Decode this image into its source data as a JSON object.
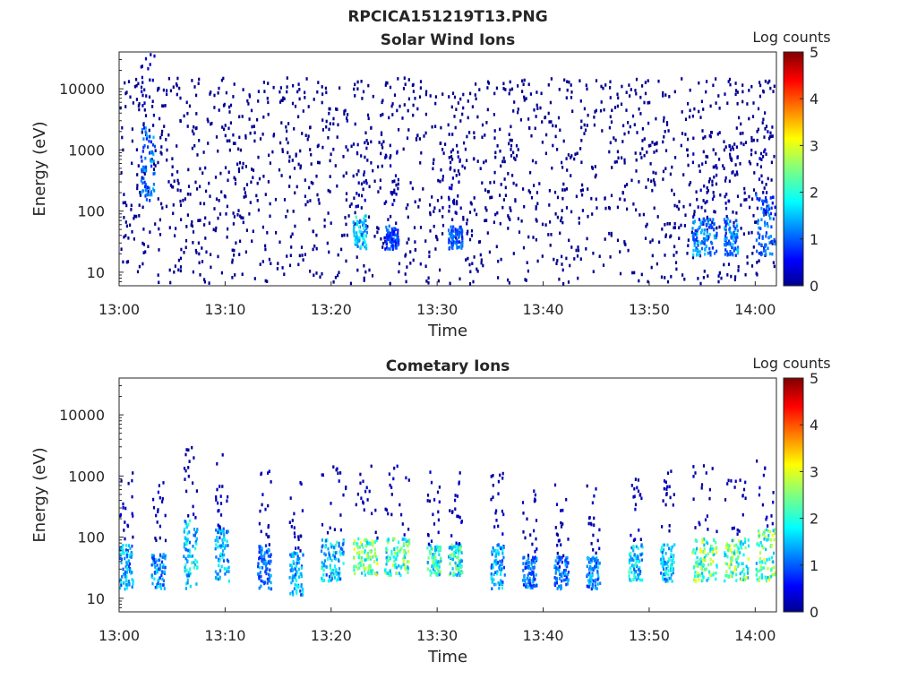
{
  "figure": {
    "title": "RPCICA151219T13.PNG"
  },
  "chart_data": [
    {
      "type": "heatmap",
      "title": "Solar Wind Ions",
      "xlabel": "Time",
      "ylabel": "Energy (eV)",
      "x_range": [
        "13:00",
        "14:02"
      ],
      "x_ticks": [
        "13:00",
        "13:10",
        "13:20",
        "13:30",
        "13:40",
        "13:50",
        "14:00"
      ],
      "y_scale": "log",
      "y_range": [
        6,
        40000
      ],
      "y_ticks": [
        10,
        100,
        1000,
        10000
      ],
      "y_tick_labels": [
        "10",
        "100",
        "1000",
        "10000"
      ],
      "colorbar": {
        "label": "Log counts",
        "range": [
          0,
          5
        ],
        "ticks": [
          "0",
          "1",
          "2",
          "3",
          "4",
          "5"
        ],
        "colormap": "jet"
      },
      "features": [
        {
          "time": "13:00-14:02",
          "energy_range": [
            6,
            40000
          ],
          "log_counts": 0.1,
          "description": "sparse background counts"
        },
        {
          "time": "13:02-13:03",
          "energy_range": [
            150,
            2500
          ],
          "log_counts": 1.5
        },
        {
          "time": "13:22-13:23",
          "energy_range": [
            25,
            90
          ],
          "log_counts": 2.0
        },
        {
          "time": "13:25-13:26",
          "energy_range": [
            25,
            60
          ],
          "log_counts": 1.2
        },
        {
          "time": "13:31-13:32",
          "energy_range": [
            25,
            60
          ],
          "log_counts": 1.3
        },
        {
          "time": "13:54-13:56",
          "energy_range": [
            20,
            80
          ],
          "log_counts": 1.6
        },
        {
          "time": "13:57-13:58",
          "energy_range": [
            20,
            80
          ],
          "log_counts": 1.6
        },
        {
          "time": "14:00-14:02",
          "energy_range": [
            20,
            200
          ],
          "log_counts": 1.4
        }
      ]
    },
    {
      "type": "heatmap",
      "title": "Cometary Ions",
      "xlabel": "Time",
      "ylabel": "Energy (eV)",
      "x_range": [
        "13:00",
        "14:02"
      ],
      "x_ticks": [
        "13:00",
        "13:10",
        "13:20",
        "13:30",
        "13:40",
        "13:50",
        "14:00"
      ],
      "y_scale": "log",
      "y_range": [
        6,
        40000
      ],
      "y_ticks": [
        10,
        100,
        1000,
        10000
      ],
      "y_tick_labels": [
        "10",
        "100",
        "1000",
        "10000"
      ],
      "colorbar": {
        "label": "Log counts",
        "range": [
          0,
          5
        ],
        "ticks": [
          "0",
          "1",
          "2",
          "3",
          "4",
          "5"
        ],
        "colormap": "jet"
      },
      "features": [
        {
          "time": "13:00-13:01",
          "energy_range": [
            15,
            80
          ],
          "log_counts": 1.8
        },
        {
          "time": "13:03-13:04",
          "energy_range": [
            15,
            60
          ],
          "log_counts": 1.7
        },
        {
          "time": "13:06-13:07",
          "energy_range": [
            15,
            200
          ],
          "log_counts": 2.0
        },
        {
          "time": "13:09-13:10",
          "energy_range": [
            20,
            150
          ],
          "log_counts": 1.8
        },
        {
          "time": "13:13-13:14",
          "energy_range": [
            15,
            80
          ],
          "log_counts": 1.5
        },
        {
          "time": "13:16-13:17",
          "energy_range": [
            12,
            60
          ],
          "log_counts": 1.8
        },
        {
          "time": "13:19-13:21",
          "energy_range": [
            20,
            100
          ],
          "log_counts": 2.0
        },
        {
          "time": "13:22-13:24",
          "energy_range": [
            25,
            100
          ],
          "log_counts": 2.9
        },
        {
          "time": "13:25-13:27",
          "energy_range": [
            25,
            100
          ],
          "log_counts": 2.7
        },
        {
          "time": "13:29-13:30",
          "energy_range": [
            25,
            80
          ],
          "log_counts": 2.5
        },
        {
          "time": "13:31-13:32",
          "energy_range": [
            25,
            80
          ],
          "log_counts": 2.4
        },
        {
          "time": "13:35-13:36",
          "energy_range": [
            15,
            80
          ],
          "log_counts": 1.8
        },
        {
          "time": "13:38-13:39",
          "energy_range": [
            15,
            50
          ],
          "log_counts": 1.5
        },
        {
          "time": "13:41-13:42",
          "energy_range": [
            15,
            50
          ],
          "log_counts": 1.5
        },
        {
          "time": "13:44-13:45",
          "energy_range": [
            15,
            50
          ],
          "log_counts": 1.6
        },
        {
          "time": "13:48-13:49",
          "energy_range": [
            20,
            80
          ],
          "log_counts": 2.0
        },
        {
          "time": "13:51-13:52",
          "energy_range": [
            20,
            80
          ],
          "log_counts": 2.0
        },
        {
          "time": "13:54-13:56",
          "energy_range": [
            20,
            100
          ],
          "log_counts": 2.8
        },
        {
          "time": "13:57-13:59",
          "energy_range": [
            20,
            100
          ],
          "log_counts": 2.8
        },
        {
          "time": "14:00-14:02",
          "energy_range": [
            20,
            150
          ],
          "log_counts": 2.9
        }
      ]
    }
  ]
}
